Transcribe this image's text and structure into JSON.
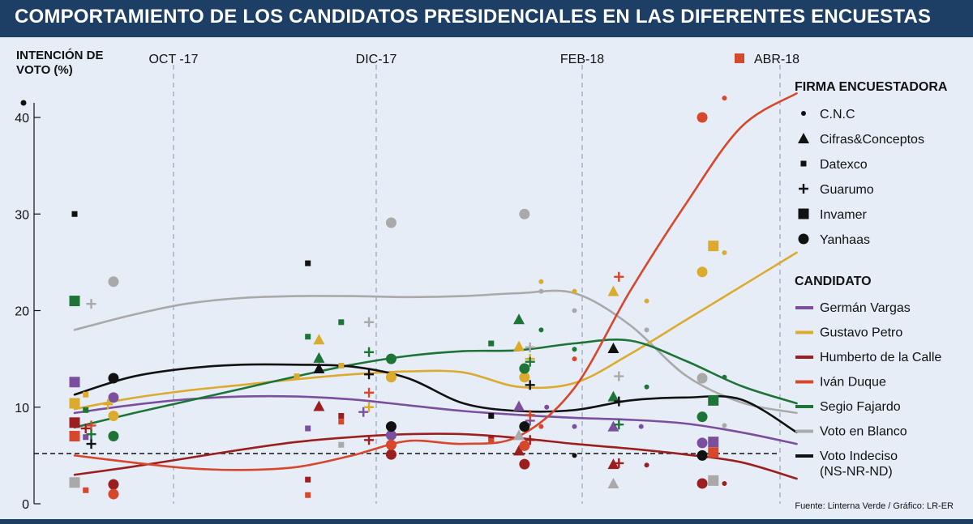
{
  "title": "COMPORTAMIENTO DE LOS CANDIDATOS PRESIDENCIALES EN LAS DIFERENTES ENCUESTAS",
  "source": "Fuente:  Linterna Verde / Gráfico: LR-ER",
  "chart_data": {
    "type": "scatter",
    "ylabel": [
      "INTENCIÓN DE",
      "VOTO (%)"
    ],
    "ylim": [
      0,
      40
    ],
    "yticks": [
      0,
      10,
      20,
      30,
      40
    ],
    "reference_line": 5.2,
    "period_labels": [
      "OCT -17",
      "DIC-17",
      "FEB-18",
      "ABR-18"
    ],
    "period_marker_color": "#d7472b",
    "legend_pollsters_title": "FIRMA ENCUESTADORA",
    "pollsters": [
      {
        "name": "C.N.C",
        "shape": "small-dot"
      },
      {
        "name": "Cifras&Conceptos",
        "shape": "triangle"
      },
      {
        "name": "Datexco",
        "shape": "small-square"
      },
      {
        "name": "Guarumo",
        "shape": "plus"
      },
      {
        "name": "Invamer",
        "shape": "square"
      },
      {
        "name": "Yanhaas",
        "shape": "dot"
      }
    ],
    "legend_candidates_title": "CANDIDATO",
    "candidates": [
      {
        "name": "Germán Vargas",
        "color": "#7b4f9d"
      },
      {
        "name": "Gustavo Petro",
        "color": "#dcab2e"
      },
      {
        "name": "Humberto de la Calle",
        "color": "#9c1f1f"
      },
      {
        "name": "Iván Duque",
        "color": "#d7472b"
      },
      {
        "name": "Segio Fajardo",
        "color": "#1e7437"
      },
      {
        "name": "Voto en Blanco",
        "color": "#a9a9a9"
      },
      {
        "name": "Voto Indeciso",
        "name2": "(NS-NR-ND)",
        "color": "#111111"
      }
    ],
    "series": [
      {
        "candidate": 0,
        "trend": [
          [
            0,
            9.4
          ],
          [
            1,
            10.2
          ],
          [
            2,
            10.8
          ],
          [
            3,
            11.1
          ],
          [
            4,
            11.1
          ],
          [
            5,
            10.8
          ],
          [
            6,
            10.2
          ],
          [
            7,
            9.6
          ],
          [
            8,
            9.2
          ],
          [
            9,
            8.9
          ],
          [
            10,
            8.7
          ],
          [
            11,
            8.3
          ],
          [
            12,
            7.4
          ],
          [
            13,
            6.2
          ]
        ],
        "points": [
          [
            0,
            "square",
            12.6
          ],
          [
            0.2,
            "small-square",
            6.9
          ],
          [
            0.7,
            "dot",
            11.0
          ],
          [
            4.2,
            "small-square",
            7.8
          ],
          [
            5.2,
            "plus",
            9.5
          ],
          [
            5.7,
            "dot",
            7.1
          ],
          [
            8.0,
            "triangle",
            10.1
          ],
          [
            8.2,
            "plus",
            8.6
          ],
          [
            8.5,
            "small-dot",
            10.0
          ],
          [
            9.0,
            "small-dot",
            8.0
          ],
          [
            9.7,
            "triangle",
            8.0
          ],
          [
            10.2,
            "small-dot",
            8.0
          ],
          [
            11.3,
            "dot",
            6.3
          ],
          [
            11.5,
            "square",
            6.4
          ]
        ]
      },
      {
        "candidate": 1,
        "trend": [
          [
            0,
            9.8
          ],
          [
            1,
            10.9
          ],
          [
            2,
            11.7
          ],
          [
            3,
            12.3
          ],
          [
            4,
            12.9
          ],
          [
            5,
            13.4
          ],
          [
            6,
            13.7
          ],
          [
            7,
            13.6
          ],
          [
            8,
            12.1
          ],
          [
            9,
            12.5
          ],
          [
            10,
            15.5
          ],
          [
            11,
            19.0
          ],
          [
            12,
            22.5
          ],
          [
            13,
            26.0
          ]
        ],
        "points": [
          [
            0,
            "square",
            10.4
          ],
          [
            0.2,
            "small-square",
            11.3
          ],
          [
            0.6,
            "plus",
            10.3
          ],
          [
            0.7,
            "dot",
            9.1
          ],
          [
            4.0,
            "small-square",
            13.2
          ],
          [
            4.4,
            "triangle",
            17.0
          ],
          [
            4.8,
            "small-square",
            14.3
          ],
          [
            5.3,
            "plus",
            10.0
          ],
          [
            5.7,
            "dot",
            13.1
          ],
          [
            8.0,
            "triangle",
            16.3
          ],
          [
            8.1,
            "dot",
            13.1
          ],
          [
            8.2,
            "plus",
            15.0
          ],
          [
            8.4,
            "small-dot",
            23.0
          ],
          [
            9.0,
            "small-dot",
            22.0
          ],
          [
            9.7,
            "triangle",
            22.0
          ],
          [
            9.8,
            "plus",
            23.5
          ],
          [
            10.3,
            "small-dot",
            21.0
          ],
          [
            11.3,
            "dot",
            24.0
          ],
          [
            11.5,
            "square",
            26.7
          ],
          [
            11.7,
            "small-dot",
            26.0
          ]
        ]
      },
      {
        "candidate": 2,
        "trend": [
          [
            0,
            3.0
          ],
          [
            1,
            3.8
          ],
          [
            2,
            4.7
          ],
          [
            3,
            5.6
          ],
          [
            4,
            6.4
          ],
          [
            5,
            6.9
          ],
          [
            6,
            7.2
          ],
          [
            7,
            7.2
          ],
          [
            8,
            6.8
          ],
          [
            9,
            6.2
          ],
          [
            10,
            5.7
          ],
          [
            11,
            5.1
          ],
          [
            12,
            4.3
          ],
          [
            13,
            2.6
          ]
        ],
        "points": [
          [
            0,
            "square",
            8.4
          ],
          [
            0.2,
            "plus",
            7.8
          ],
          [
            0.7,
            "dot",
            2.0
          ],
          [
            4.2,
            "small-square",
            2.5
          ],
          [
            4.4,
            "triangle",
            10.1
          ],
          [
            4.8,
            "small-square",
            9.1
          ],
          [
            5.3,
            "plus",
            6.6
          ],
          [
            5.7,
            "dot",
            5.1
          ],
          [
            7.5,
            "small-square",
            6.8
          ],
          [
            8.0,
            "triangle",
            5.5
          ],
          [
            8.1,
            "dot",
            4.1
          ],
          [
            8.2,
            "plus",
            6.6
          ],
          [
            9.7,
            "triangle",
            4.1
          ],
          [
            9.8,
            "plus",
            4.2
          ],
          [
            10.3,
            "small-dot",
            4.0
          ],
          [
            11.3,
            "dot",
            2.1
          ],
          [
            11.7,
            "small-dot",
            2.1
          ]
        ]
      },
      {
        "candidate": 3,
        "trend": [
          [
            0,
            5.0
          ],
          [
            1,
            4.3
          ],
          [
            2,
            3.7
          ],
          [
            3,
            3.5
          ],
          [
            4,
            3.8
          ],
          [
            5,
            5.0
          ],
          [
            6,
            6.5
          ],
          [
            7,
            6.2
          ],
          [
            8,
            7.0
          ],
          [
            9,
            12.0
          ],
          [
            10,
            22.0
          ],
          [
            11,
            31.0
          ],
          [
            12,
            39.0
          ],
          [
            13,
            42.5
          ]
        ],
        "points": [
          [
            0,
            "square",
            7.0
          ],
          [
            0.2,
            "small-square",
            1.4
          ],
          [
            0.3,
            "plus",
            8.1
          ],
          [
            0.7,
            "dot",
            1.0
          ],
          [
            4.2,
            "small-square",
            0.9
          ],
          [
            4.8,
            "small-square",
            8.5
          ],
          [
            5.3,
            "plus",
            11.5
          ],
          [
            5.7,
            "dot",
            6.1
          ],
          [
            7.5,
            "small-square",
            6.5
          ],
          [
            8.1,
            "dot",
            6.0
          ],
          [
            8.2,
            "plus",
            9.2
          ],
          [
            8.4,
            "small-dot",
            8.0
          ],
          [
            9.0,
            "small-dot",
            15.0
          ],
          [
            9.8,
            "plus",
            23.5
          ],
          [
            11.3,
            "dot",
            40.0
          ],
          [
            11.5,
            "square",
            5.3
          ],
          [
            11.7,
            "small-dot",
            42.0
          ]
        ]
      },
      {
        "candidate": 4,
        "trend": [
          [
            0,
            7.9
          ],
          [
            1,
            9.3
          ],
          [
            2,
            10.6
          ],
          [
            3,
            11.9
          ],
          [
            4,
            13.2
          ],
          [
            5,
            14.4
          ],
          [
            6,
            15.3
          ],
          [
            7,
            15.8
          ],
          [
            8,
            15.9
          ],
          [
            9,
            16.6
          ],
          [
            10,
            16.9
          ],
          [
            11,
            14.8
          ],
          [
            12,
            12.2
          ],
          [
            13,
            10.4
          ]
        ],
        "points": [
          [
            0,
            "square",
            21.0
          ],
          [
            0.2,
            "small-square",
            9.7
          ],
          [
            0.3,
            "plus",
            7.2
          ],
          [
            0.7,
            "dot",
            7.0
          ],
          [
            4.2,
            "small-square",
            17.3
          ],
          [
            4.4,
            "triangle",
            15.1
          ],
          [
            4.8,
            "small-square",
            18.8
          ],
          [
            5.3,
            "plus",
            15.7
          ],
          [
            5.7,
            "dot",
            15.0
          ],
          [
            7.5,
            "small-square",
            16.6
          ],
          [
            8.0,
            "triangle",
            19.1
          ],
          [
            8.1,
            "dot",
            14.0
          ],
          [
            8.2,
            "plus",
            14.7
          ],
          [
            8.4,
            "small-dot",
            18.0
          ],
          [
            9.0,
            "small-dot",
            16.0
          ],
          [
            9.7,
            "triangle",
            11.1
          ],
          [
            9.8,
            "plus",
            8.2
          ],
          [
            10.3,
            "small-dot",
            12.1
          ],
          [
            11.3,
            "dot",
            9.0
          ],
          [
            11.5,
            "square",
            10.7
          ],
          [
            11.7,
            "small-dot",
            13.1
          ]
        ]
      },
      {
        "candidate": 5,
        "trend": [
          [
            0,
            18.0
          ],
          [
            1,
            19.5
          ],
          [
            2,
            20.7
          ],
          [
            3,
            21.3
          ],
          [
            4,
            21.5
          ],
          [
            5,
            21.5
          ],
          [
            6,
            21.4
          ],
          [
            7,
            21.5
          ],
          [
            8,
            21.8
          ],
          [
            9,
            21.8
          ],
          [
            10,
            18.5
          ],
          [
            11,
            13.3
          ],
          [
            12,
            10.5
          ],
          [
            13,
            9.4
          ]
        ],
        "points": [
          [
            0,
            "square",
            2.2
          ],
          [
            0.3,
            "plus",
            20.7
          ],
          [
            0.7,
            "dot",
            23.0
          ],
          [
            4.8,
            "small-square",
            6.1
          ],
          [
            5.3,
            "plus",
            18.8
          ],
          [
            5.7,
            "dot",
            29.1
          ],
          [
            8.0,
            "triangle",
            7.1
          ],
          [
            8.1,
            "dot",
            30.0
          ],
          [
            8.2,
            "plus",
            16.2
          ],
          [
            8.4,
            "small-dot",
            22.0
          ],
          [
            9.0,
            "small-dot",
            20.0
          ],
          [
            9.7,
            "triangle",
            2.1
          ],
          [
            9.8,
            "plus",
            13.2
          ],
          [
            10.3,
            "small-dot",
            18.0
          ],
          [
            11.3,
            "dot",
            13.0
          ],
          [
            11.5,
            "square",
            2.4
          ],
          [
            11.7,
            "small-dot",
            8.1
          ]
        ]
      },
      {
        "candidate": 6,
        "trend": [
          [
            0,
            11.3
          ],
          [
            1,
            13.1
          ],
          [
            2,
            14.0
          ],
          [
            3,
            14.4
          ],
          [
            4,
            14.4
          ],
          [
            5,
            14.2
          ],
          [
            6,
            13.0
          ],
          [
            7,
            10.4
          ],
          [
            8,
            9.6
          ],
          [
            9,
            9.7
          ],
          [
            10,
            10.7
          ],
          [
            11,
            11.0
          ],
          [
            12,
            10.8
          ],
          [
            13,
            7.4
          ]
        ],
        "points": [
          [
            0,
            "small-square",
            30.0
          ],
          [
            0.3,
            "plus",
            6.2
          ],
          [
            0.7,
            "dot",
            13.0
          ],
          [
            4.2,
            "small-square",
            24.9
          ],
          [
            4.4,
            "triangle",
            14.0
          ],
          [
            5.3,
            "plus",
            13.4
          ],
          [
            5.7,
            "dot",
            8.0
          ],
          [
            7.5,
            "small-square",
            9.1
          ],
          [
            8.1,
            "dot",
            8.0
          ],
          [
            8.2,
            "plus",
            12.3
          ],
          [
            9.0,
            "small-dot",
            5.0
          ],
          [
            9.7,
            "triangle",
            16.1
          ],
          [
            9.8,
            "plus",
            10.6
          ],
          [
            11.3,
            "dot",
            5.0
          ]
        ]
      }
    ]
  }
}
